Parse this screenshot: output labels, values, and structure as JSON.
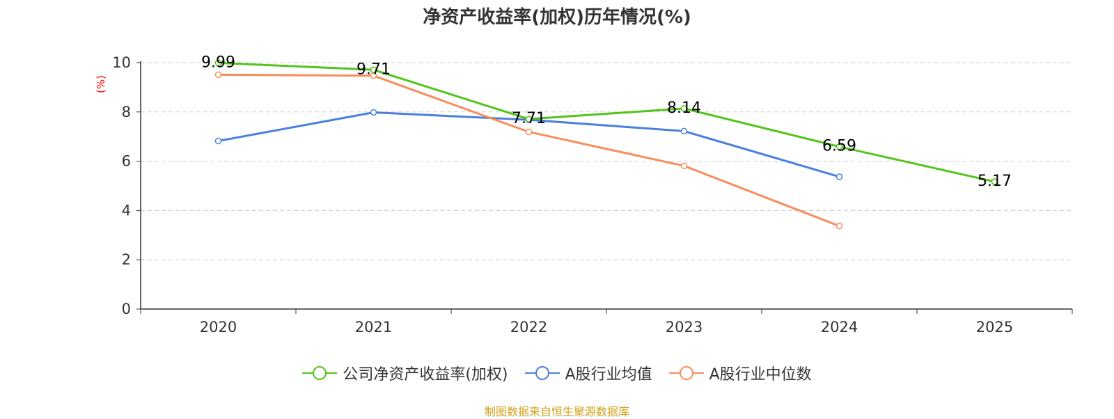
{
  "chart_data": {
    "type": "line",
    "title": "净资产收益率(加权)历年情况(%)",
    "ylabel": "(%)",
    "xlabel": "",
    "categories": [
      "2020",
      "2021",
      "2022",
      "2023",
      "2024",
      "2025"
    ],
    "ylim": [
      0,
      10
    ],
    "yticks": [
      0,
      2,
      4,
      6,
      8,
      10
    ],
    "grid": true,
    "legend_position": "bottom",
    "series": [
      {
        "name": "公司净资产收益率(加权)",
        "color": "#52c41a",
        "values": [
          9.99,
          9.71,
          7.71,
          8.14,
          6.59,
          5.17
        ],
        "labels": [
          "9.99",
          "9.71",
          "7.71",
          "8.14",
          "6.59",
          "5.17"
        ]
      },
      {
        "name": "A股行业均值",
        "color": "#4a7fe0",
        "values": [
          6.82,
          7.98,
          7.68,
          7.22,
          5.37,
          null
        ]
      },
      {
        "name": "A股行业中位数",
        "color": "#fa8c5a",
        "values": [
          9.51,
          9.47,
          7.19,
          5.81,
          3.37,
          null
        ]
      }
    ]
  },
  "source": "制图数据来自恒生聚源数据库"
}
